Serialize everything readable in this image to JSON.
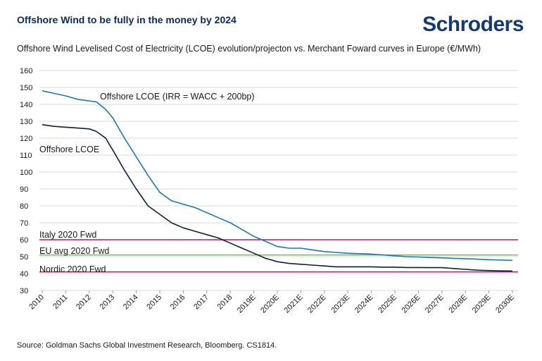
{
  "header": {
    "headline": "Offshore Wind to be fully in the money by 2024",
    "logo": "Schroders"
  },
  "footer": {
    "source": "Source: Goldman Sachs Global Investment Research, Bloomberg. CS1814."
  },
  "chart_data": {
    "type": "line",
    "title": "Offshore Wind Levelised Cost of Electricity (LCOE) evolution/projecton vs. Merchant Foward curves in Europe (€/MWh)",
    "xlabel": "",
    "ylabel": "",
    "ylim": [
      30,
      160
    ],
    "yticks": [
      30,
      40,
      50,
      60,
      70,
      80,
      90,
      100,
      110,
      120,
      130,
      140,
      150,
      160
    ],
    "categories": [
      "2010",
      "2011",
      "2012",
      "2013",
      "2014",
      "2015",
      "2016",
      "2017",
      "2018",
      "2019E",
      "2020E",
      "2021E",
      "2022E",
      "2023E",
      "2024E",
      "2025E",
      "2026E",
      "2027E",
      "2028E",
      "2029E",
      "2030E"
    ],
    "grid": true,
    "x": [
      2010,
      2010.5,
      2011,
      2011.5,
      2012,
      2012.3,
      2012.7,
      2013,
      2013.5,
      2014,
      2014.5,
      2015,
      2015.5,
      2016,
      2016.5,
      2017,
      2017.5,
      2018,
      2018.5,
      2019,
      2019.5,
      2020,
      2020.5,
      2021,
      2021.5,
      2022,
      2022.5,
      2023,
      2023.5,
      2024,
      2024.5,
      2025,
      2025.5,
      2026,
      2026.5,
      2027,
      2027.5,
      2028,
      2028.5,
      2029,
      2029.5,
      2030
    ],
    "series": [
      {
        "name": "Offshore LCOE (IRR = WACC + 200bp)",
        "color": "#1f77b4",
        "values": [
          148,
          146.5,
          145,
          143,
          142,
          141.5,
          137,
          132,
          120,
          109,
          98,
          88,
          83,
          81,
          79,
          76,
          73,
          70,
          66,
          62,
          59,
          56,
          55,
          55,
          54,
          53,
          52.5,
          52,
          51.8,
          51.5,
          51,
          50.5,
          50,
          49.8,
          49.5,
          49.3,
          49,
          48.8,
          48.5,
          48.2,
          48,
          47.8
        ]
      },
      {
        "name": "Offshore LCOE",
        "color": "#0d1f3c",
        "values": [
          128,
          127,
          126.5,
          126,
          125.5,
          124,
          120,
          113,
          101,
          90,
          80,
          75,
          70,
          67,
          65,
          63,
          61,
          58,
          55,
          52,
          49,
          47,
          46,
          45.5,
          45,
          44.5,
          44,
          44,
          44,
          44,
          43.8,
          43.8,
          43.6,
          43.6,
          43.5,
          43.5,
          43,
          42.5,
          42,
          41.8,
          41.6,
          41.5
        ]
      }
    ],
    "hlines": [
      {
        "name": "Italy 2020 Fwd",
        "value": 60,
        "color": "#b01e68"
      },
      {
        "name": "EU avg 2020 Fwd",
        "value": 51,
        "color": "#6cc04a"
      },
      {
        "name": "Nordic 2020 Fwd",
        "value": 41,
        "color": "#b01e68"
      }
    ],
    "annotations": [
      "Offshore LCOE (IRR = WACC + 200bp)",
      "Offshore LCOE",
      "Italy 2020 Fwd",
      "EU avg 2020 Fwd",
      "Nordic 2020 Fwd"
    ]
  }
}
